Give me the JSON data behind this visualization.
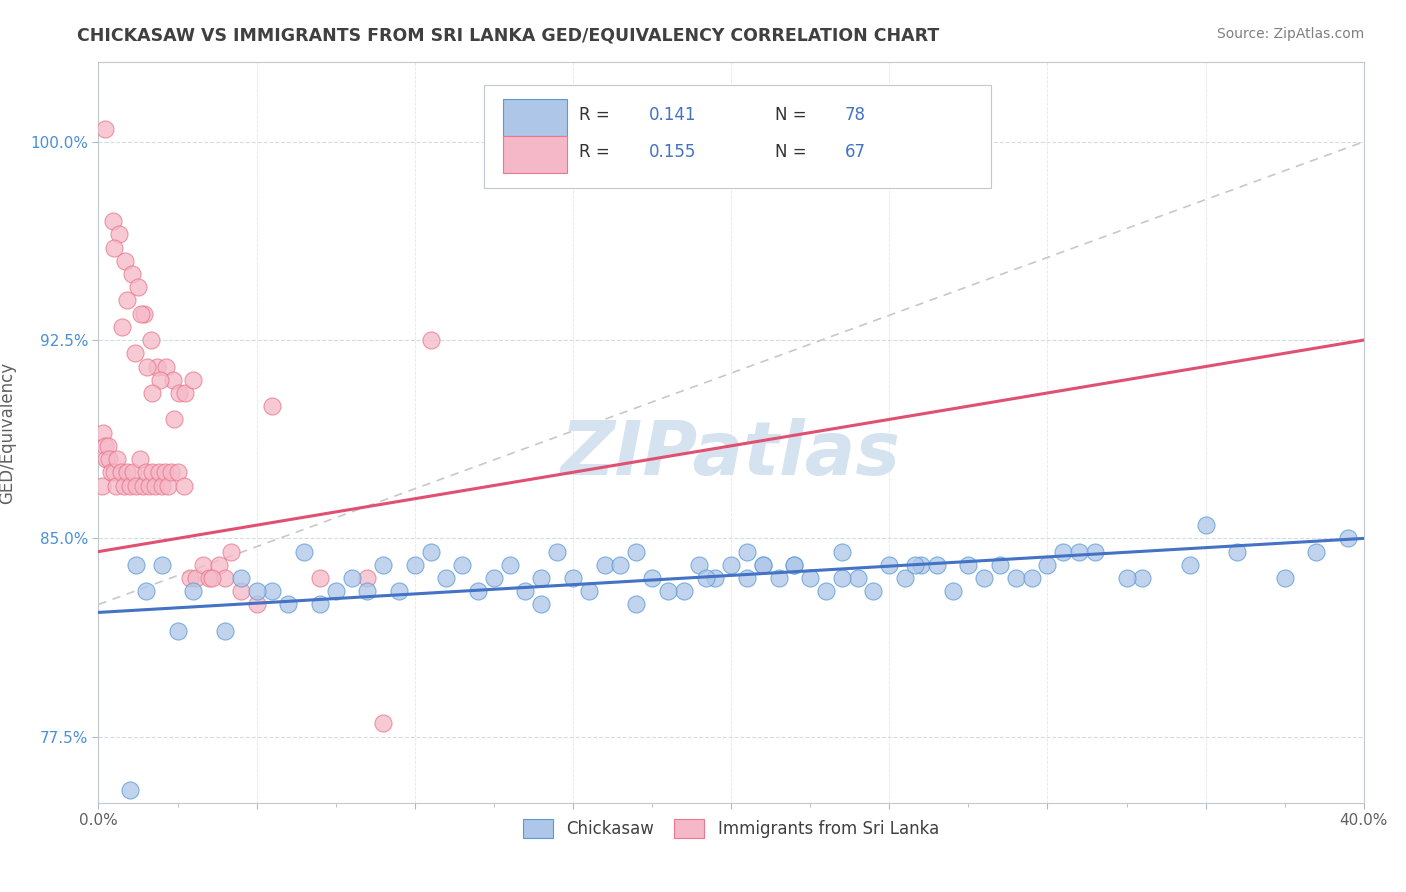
{
  "title": "CHICKASAW VS IMMIGRANTS FROM SRI LANKA GED/EQUIVALENCY CORRELATION CHART",
  "source": "Source: ZipAtlas.com",
  "xlim": [
    0.0,
    40.0
  ],
  "ylim": [
    75.0,
    103.0
  ],
  "ylabel": "GED/Equivalency",
  "legend_labels": [
    "Chickasaw",
    "Immigrants from Sri Lanka"
  ],
  "legend_R": [
    0.141,
    0.155
  ],
  "legend_N": [
    78,
    67
  ],
  "blue_color": "#aec6e8",
  "pink_color": "#f5b8c8",
  "blue_edge_color": "#5b9bd5",
  "pink_edge_color": "#e8788a",
  "blue_line_color": "#4472c4",
  "pink_line_color": "#e05070",
  "ref_line_color": "#c8c8c8",
  "watermark": "ZIPatlas",
  "watermark_color": "#d5e3f0",
  "title_color": "#404040",
  "source_color": "#808080",
  "grid_color": "#d0d8e0",
  "yticks": [
    77.5,
    85.0,
    92.5,
    100.0
  ],
  "xticks": [
    0,
    5,
    10,
    15,
    20,
    25,
    30,
    35,
    40
  ],
  "x_minor_ticks": [
    0,
    2.5,
    5,
    7.5,
    10,
    12.5,
    15,
    17.5,
    20,
    22.5,
    25,
    27.5,
    30,
    32.5,
    35,
    37.5,
    40
  ],
  "blue_trend_x0": 0.0,
  "blue_trend_y0": 82.2,
  "blue_trend_x1": 40.0,
  "blue_trend_y1": 85.0,
  "pink_trend_x0": 0.0,
  "pink_trend_y0": 84.5,
  "pink_trend_x1": 40.0,
  "pink_trend_y1": 92.5,
  "ref_line_x0": 0.0,
  "ref_line_y0": 82.5,
  "ref_line_x1": 40.0,
  "ref_line_y1": 100.0,
  "chickasaw_x": [
    1.0,
    1.5,
    2.5,
    4.5,
    5.5,
    6.5,
    7.5,
    8.0,
    9.5,
    10.0,
    11.0,
    12.0,
    13.0,
    14.0,
    14.5,
    15.5,
    16.0,
    17.0,
    17.5,
    18.5,
    19.0,
    19.5,
    20.0,
    20.5,
    21.0,
    21.5,
    22.0,
    23.0,
    23.5,
    24.5,
    25.0,
    25.5,
    26.0,
    27.0,
    28.0,
    28.5,
    29.0,
    30.0,
    31.5,
    33.0,
    34.5,
    36.0,
    37.5,
    39.5,
    3.0,
    6.0,
    10.5,
    13.5,
    16.5,
    19.2,
    22.5,
    25.8,
    29.5,
    32.5,
    2.0,
    7.0,
    11.5,
    15.0,
    18.0,
    21.0,
    24.0,
    27.5,
    30.5,
    4.0,
    8.5,
    12.5,
    17.0,
    20.5,
    23.5,
    26.5,
    31.0,
    35.0,
    38.5,
    1.2,
    5.0,
    9.0,
    14.0,
    22.0
  ],
  "chickasaw_y": [
    75.5,
    83.0,
    81.5,
    83.5,
    83.0,
    84.5,
    83.0,
    83.5,
    83.0,
    84.0,
    83.5,
    83.0,
    84.0,
    83.5,
    84.5,
    83.0,
    84.0,
    84.5,
    83.5,
    83.0,
    84.0,
    83.5,
    84.0,
    83.5,
    84.0,
    83.5,
    84.0,
    83.0,
    84.5,
    83.0,
    84.0,
    83.5,
    84.0,
    83.0,
    83.5,
    84.0,
    83.5,
    84.0,
    84.5,
    83.5,
    84.0,
    84.5,
    83.5,
    85.0,
    83.0,
    82.5,
    84.5,
    83.0,
    84.0,
    83.5,
    83.5,
    84.0,
    83.5,
    83.5,
    84.0,
    82.5,
    84.0,
    83.5,
    83.0,
    84.0,
    83.5,
    84.0,
    84.5,
    81.5,
    83.0,
    83.5,
    82.5,
    84.5,
    83.5,
    84.0,
    84.5,
    85.5,
    84.5,
    84.0,
    83.0,
    84.0,
    82.5,
    84.0
  ],
  "srilanka_x": [
    0.1,
    0.15,
    0.2,
    0.25,
    0.3,
    0.35,
    0.4,
    0.5,
    0.55,
    0.6,
    0.7,
    0.8,
    0.9,
    1.0,
    1.1,
    1.2,
    1.3,
    1.4,
    1.5,
    1.6,
    1.7,
    1.8,
    1.9,
    2.0,
    2.1,
    2.2,
    2.3,
    2.5,
    2.7,
    2.9,
    3.1,
    3.3,
    3.5,
    3.8,
    4.2,
    4.5,
    0.45,
    0.65,
    0.85,
    1.05,
    1.25,
    1.45,
    1.65,
    1.85,
    2.15,
    2.35,
    2.55,
    2.75,
    0.75,
    1.15,
    1.55,
    1.95,
    3.0,
    4.0,
    5.5,
    7.0,
    8.5,
    10.5,
    0.2,
    0.5,
    0.9,
    1.35,
    1.7,
    2.4,
    3.6,
    5.0,
    9.0
  ],
  "srilanka_y": [
    87.0,
    89.0,
    88.5,
    88.0,
    88.5,
    88.0,
    87.5,
    87.5,
    87.0,
    88.0,
    87.5,
    87.0,
    87.5,
    87.0,
    87.5,
    87.0,
    88.0,
    87.0,
    87.5,
    87.0,
    87.5,
    87.0,
    87.5,
    87.0,
    87.5,
    87.0,
    87.5,
    87.5,
    87.0,
    83.5,
    83.5,
    84.0,
    83.5,
    84.0,
    84.5,
    83.0,
    97.0,
    96.5,
    95.5,
    95.0,
    94.5,
    93.5,
    92.5,
    91.5,
    91.5,
    91.0,
    90.5,
    90.5,
    93.0,
    92.0,
    91.5,
    91.0,
    91.0,
    83.5,
    90.0,
    83.5,
    83.5,
    92.5,
    100.5,
    96.0,
    94.0,
    93.5,
    90.5,
    89.5,
    83.5,
    82.5,
    78.0
  ]
}
